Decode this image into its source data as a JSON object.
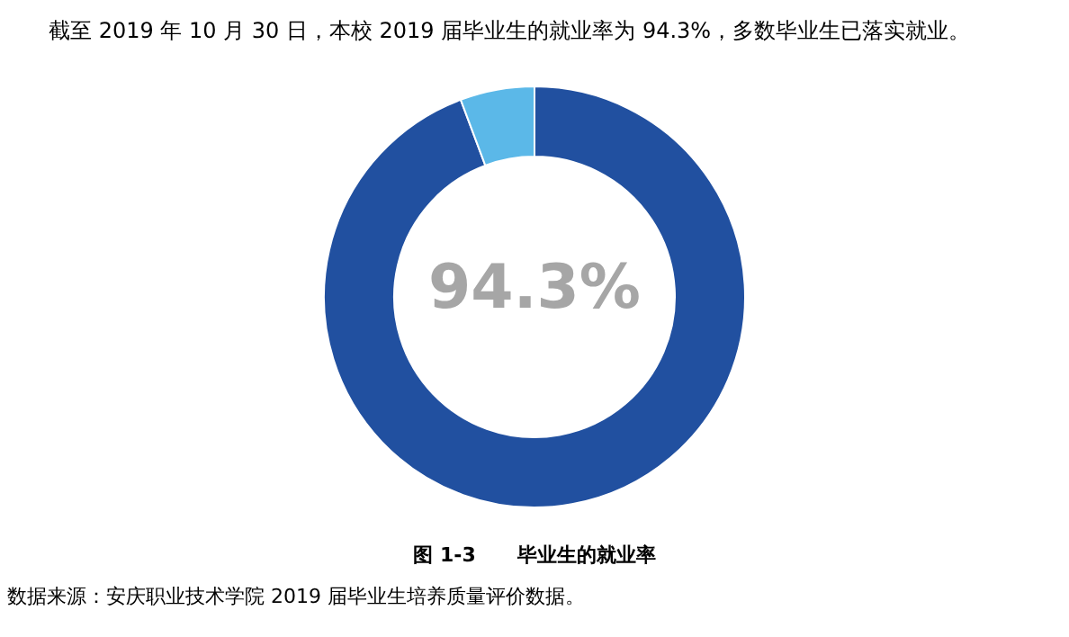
{
  "chart_data": {
    "type": "donut",
    "title": "截至 2019 年 10 月 30 日，本校 2019 届毕业生的就业率为 94.3%，多数毕业生已落实就业。",
    "categories": [
      null,
      null
    ],
    "values": [
      94.3,
      5.7
    ],
    "colors": [
      "#2150a0",
      "#5bb8e8"
    ],
    "value_labels": [
      "94.3%",
      null
    ],
    "annotations": [
      "图 1-3      毕业生的就业率",
      "数据来源：安庆职业技术学院 2019 届毕业生培养质量评价数据。"
    ]
  }
}
